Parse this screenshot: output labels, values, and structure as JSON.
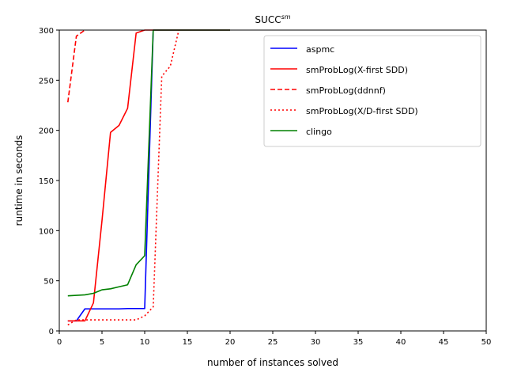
{
  "chart_data": {
    "type": "line",
    "title": "SUCC",
    "title_superscript": "sm",
    "xlabel": "number of instances solved",
    "ylabel": "runtime in seconds",
    "xlim": [
      0,
      50
    ],
    "ylim": [
      0,
      300
    ],
    "xticks": [
      0,
      5,
      10,
      15,
      20,
      25,
      30,
      35,
      40,
      45,
      50
    ],
    "yticks": [
      0,
      50,
      100,
      150,
      200,
      250,
      300
    ],
    "grid": false,
    "legend_position": "top-right",
    "series": [
      {
        "name": "aspmc",
        "color": "#0000ff",
        "style": "solid",
        "x": [
          1,
          2,
          3,
          4,
          5,
          6,
          7,
          8,
          9,
          10,
          11,
          12,
          13,
          14,
          15,
          16,
          17,
          18,
          19,
          20
        ],
        "y": [
          10,
          10,
          22,
          22,
          22,
          22,
          22,
          22.3,
          22.3,
          22.3,
          300,
          300,
          300,
          300,
          300,
          300,
          300,
          300,
          300,
          300
        ]
      },
      {
        "name": "smProbLog(X-first SDD)",
        "color": "#ff0000",
        "style": "solid",
        "x": [
          1,
          2,
          3,
          4,
          5,
          6,
          7,
          8,
          9,
          10,
          11,
          12,
          13,
          14,
          15,
          16,
          17,
          18,
          19,
          20
        ],
        "y": [
          10,
          10,
          10,
          28,
          110,
          198,
          205,
          222,
          297,
          300,
          300,
          300,
          300,
          300,
          300,
          300,
          300,
          300,
          300,
          300
        ]
      },
      {
        "name": "smProbLog(ddnnf)",
        "color": "#ff0000",
        "style": "dashed",
        "x": [
          1,
          2,
          3
        ],
        "y": [
          228,
          294,
          300
        ]
      },
      {
        "name": "smProbLog(X/D-first SDD)",
        "color": "#ff0000",
        "style": "dotted",
        "x": [
          1,
          2,
          3,
          4,
          5,
          6,
          7,
          8,
          9,
          10,
          11,
          12,
          13,
          14
        ],
        "y": [
          6,
          11,
          11,
          11,
          11,
          11,
          11,
          11,
          11,
          15,
          24,
          254,
          264,
          300
        ]
      },
      {
        "name": "clingo",
        "color": "#008000",
        "style": "solid",
        "x": [
          1,
          2,
          3,
          4,
          5,
          6,
          7,
          8,
          9,
          10,
          11,
          12,
          13,
          14,
          15,
          16,
          17,
          18,
          19,
          20
        ],
        "y": [
          35,
          35.5,
          36,
          37.5,
          41,
          42,
          44,
          46,
          66,
          75,
          300,
          300,
          300,
          300,
          300,
          300,
          300,
          300,
          300,
          300
        ]
      }
    ]
  }
}
